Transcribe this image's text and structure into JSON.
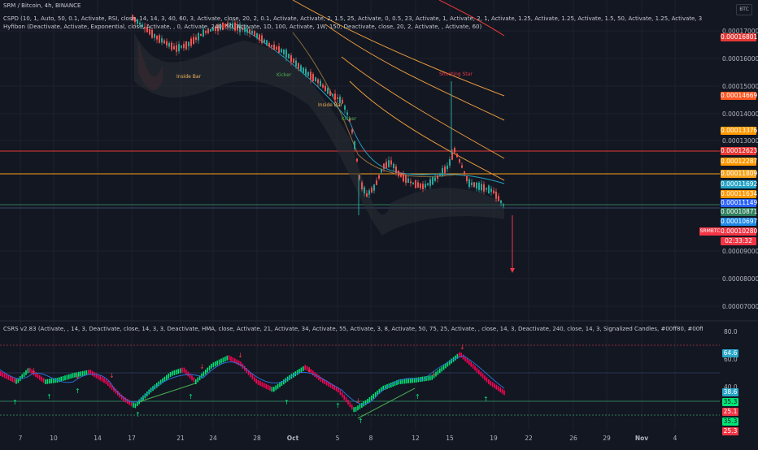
{
  "header": {
    "title_line": "SRM / Bitcoin, 4h, BINANCE",
    "cspd_line": "CSPD (10, 1, Auto, 50, 0.1, Activate, RSI, close, 14, 14, 3, 40, 60, 3, Activate, close, 20, 2, 0.1, Activate, Activate, 2, 1.5, 25, Activate, 0, 0.5, 23, Activate, 1, Activate, 2, 1, Activate, 1.25, Activate, 1.25, Activate, 1.5, 50, Activate, 1.25, Activate, 3, 1.25, Activate, 1, 50, Activate, 2, 50)",
    "hyfibon_line": "Hyfibon (Deactivate, Activate, Exponential, close, Activate, , 0, Activate, 240, 50, Activate, 1D, 100, Activate, 1W, 150, Deactivate, close, 20, 2, Activate, , Activate, 60)",
    "csrs_line": "CSRS v2.83 (Activate, , 14, 3, Deactivate, close, 14, 3, 3, Deactivate, HMA, close, Activate, 21, Activate, 34, Activate, 55, Activate, 3, 8, Activate, 50, 75, 25, Activate, , close, 14, 3, Deactivate, 240, close, 14, 3, Signalized Candles, #00ff80, #00ff80, #00ff80, #ff0055, #ff0055, #ff0055, Gradient, #daff00, #e5ff4d, 2, 3)",
    "currency_badge": "BTC"
  },
  "price_axis": {
    "labels": [
      {
        "text": "0.00017000"
      },
      {
        "text": "0.00016000"
      },
      {
        "text": "0.00015000"
      },
      {
        "text": "0.00014000"
      },
      {
        "text": "0.00013000"
      },
      {
        "text": "0.00009000"
      },
      {
        "text": "0.00008000"
      },
      {
        "text": "0.00007000"
      }
    ],
    "tags": [
      {
        "text": "0.00016801",
        "color": "#e53935"
      },
      {
        "text": "0.00014669",
        "color": "#ff5722"
      },
      {
        "text": "0.00013376",
        "color": "#ff9800"
      },
      {
        "text": "0.00012623",
        "color": "#e53935"
      },
      {
        "text": "0.00012287",
        "color": "#ff9800"
      },
      {
        "text": "0.00011809",
        "color": "#f7a21b"
      },
      {
        "text": "0.00011692",
        "color": "#26a2c4"
      },
      {
        "text": "0.00011634",
        "color": "#ff9800"
      },
      {
        "text": "0.00011149",
        "color": "#2962ff"
      },
      {
        "text": "0.00010871",
        "color": "#2e7d5b"
      },
      {
        "text": "0.00010697",
        "color": "#1e88e5"
      },
      {
        "text": "0.00010280",
        "color": "#f23645"
      },
      {
        "text": "02:33:32",
        "color": "#f23645"
      }
    ],
    "symbol_tag": "SRMBTC"
  },
  "annotations": [
    {
      "text": "Inside Bar",
      "color": "#f0b35b"
    },
    {
      "text": "Kicker",
      "color": "#4caf50"
    },
    {
      "text": "Inside Bar",
      "color": "#f0b35b"
    },
    {
      "text": "Kicker",
      "color": "#4caf50"
    },
    {
      "text": "Shooting Star",
      "color": "#f23645"
    }
  ],
  "osc_axis": {
    "labels": [
      {
        "text": "80.0"
      },
      {
        "text": "60.0"
      },
      {
        "text": "40.0"
      }
    ],
    "tags": [
      {
        "text": "64.6",
        "color": "#2aa6c8"
      },
      {
        "text": "38.6",
        "color": "#2aa6c8"
      },
      {
        "text": "35.3",
        "color": "#00e676"
      },
      {
        "text": "25.1",
        "color": "#f23645"
      },
      {
        "text": "35.3",
        "color": "#00e676"
      },
      {
        "text": "25.3",
        "color": "#f23645"
      }
    ]
  },
  "time_axis": {
    "labels": [
      "7",
      "10",
      "14",
      "17",
      "21",
      "24",
      "28",
      "Oct",
      "5",
      "8",
      "12",
      "15",
      "19",
      "22",
      "26",
      "29",
      "Nov",
      "4"
    ]
  }
}
